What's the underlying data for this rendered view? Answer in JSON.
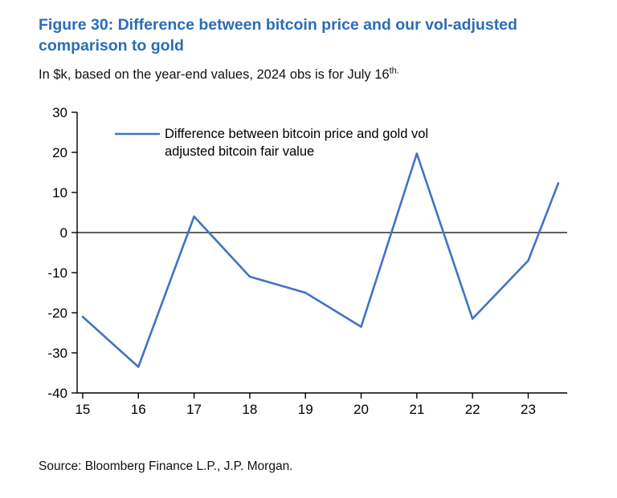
{
  "figure": {
    "title": "Figure 30: Difference between bitcoin price and our vol-adjusted comparison to gold",
    "subtitle_main": "In $k, based on the year-end values, 2024 obs is for July 16",
    "subtitle_superscript": "th.",
    "source": "Source: Bloomberg Finance L.P., J.P. Morgan."
  },
  "chart_data": {
    "type": "line",
    "title": "",
    "legend": {
      "label": "Difference between bitcoin price and gold vol adjusted bitcoin fair value",
      "lines": [
        "Difference between bitcoin price and gold vol",
        "adjusted bitcoin fair value"
      ],
      "position": "top-left-inside"
    },
    "series": [
      {
        "name": "Difference between bitcoin price and gold vol adjusted bitcoin fair value",
        "x": [
          15,
          16,
          17,
          18,
          19,
          20,
          21,
          22,
          23,
          23.54
        ],
        "values": [
          -21,
          -33.5,
          4,
          -11,
          -15,
          -23.5,
          19.7,
          -21.5,
          -7,
          12.3
        ]
      }
    ],
    "x_tick_labels": [
      "15",
      "16",
      "17",
      "18",
      "19",
      "20",
      "21",
      "22",
      "23"
    ],
    "x_tick_positions": [
      15,
      16,
      17,
      18,
      19,
      20,
      21,
      22,
      23
    ],
    "xlim": [
      14.9,
      23.7
    ],
    "y_ticks": [
      30,
      20,
      10,
      0,
      -10,
      -20,
      -30,
      -40
    ],
    "ylim": [
      -40,
      30
    ],
    "grid": false,
    "zero_line": true,
    "colors": {
      "line": "#4472C4",
      "axis": "#000000",
      "title_accent": "#2A6DB5"
    }
  }
}
